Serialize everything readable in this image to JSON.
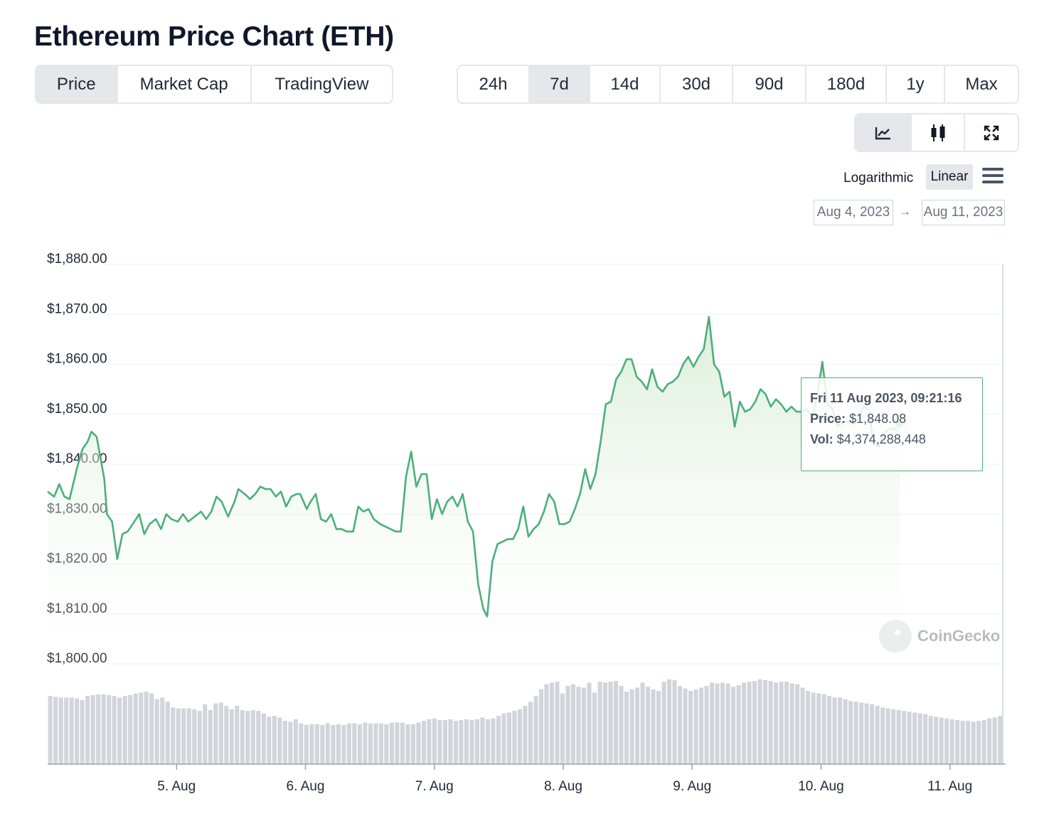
{
  "page": {
    "title": "Ethereum Price Chart (ETH)"
  },
  "view_tabs": [
    {
      "label": "Price",
      "active": true
    },
    {
      "label": "Market Cap",
      "active": false
    },
    {
      "label": "TradingView",
      "active": false
    }
  ],
  "range_tabs": [
    {
      "label": "24h",
      "active": false
    },
    {
      "label": "7d",
      "active": true
    },
    {
      "label": "14d",
      "active": false
    },
    {
      "label": "30d",
      "active": false
    },
    {
      "label": "90d",
      "active": false
    },
    {
      "label": "180d",
      "active": false
    },
    {
      "label": "1y",
      "active": false
    },
    {
      "label": "Max",
      "active": false
    }
  ],
  "chart_type_tabs": [
    {
      "icon": "line-chart-icon",
      "active": true
    },
    {
      "icon": "candlestick-icon",
      "active": false
    },
    {
      "icon": "fullscreen-icon",
      "active": false
    }
  ],
  "scale": {
    "logarithmic_label": "Logarithmic",
    "linear_label": "Linear",
    "selected": "Linear",
    "menu_icon": "hamburger-menu-icon"
  },
  "date_range": {
    "from": "Aug 4, 2023",
    "arrow": "→",
    "to": "Aug 11, 2023"
  },
  "tooltip": {
    "date": "Fri 11 Aug 2023, 09:21:16",
    "price_label": "Price:",
    "price_value": "$1,848.08",
    "vol_label": "Vol:",
    "vol_value": "$4,374,288,448"
  },
  "watermark": {
    "text": "CoinGecko",
    "icon": "coingecko-logo-icon"
  },
  "colors": {
    "line": "#4caf7a",
    "area_top": "#dcefdb",
    "volume": "#d1d5db",
    "grid": "#eef0f2"
  },
  "chart_data": {
    "type": "area",
    "ylim": [
      1800,
      1880
    ],
    "y_ticks": [
      "$1,880.00",
      "$1,870.00",
      "$1,860.00",
      "$1,850.00",
      "$1,840.00",
      "$1,830.00",
      "$1,820.00",
      "$1,810.00",
      "$1,800.00"
    ],
    "y_tick_values": [
      1880,
      1870,
      1860,
      1850,
      1840,
      1830,
      1820,
      1810,
      1800
    ],
    "x_ticks": [
      "5. Aug",
      "6. Aug",
      "7. Aug",
      "8. Aug",
      "9. Aug",
      "10. Aug",
      "11. Aug"
    ],
    "x_tick_days": [
      1.0,
      2.0,
      3.0,
      4.0,
      5.0,
      6.0,
      7.0
    ],
    "x_range_days": [
      0.0,
      7.41
    ],
    "series": [
      {
        "points": [
          [
            0.0,
            1834.5
          ],
          [
            0.05,
            1833.5
          ],
          [
            0.09,
            1836
          ],
          [
            0.13,
            1833.5
          ],
          [
            0.17,
            1833
          ],
          [
            0.23,
            1839.5
          ],
          [
            0.27,
            1843
          ],
          [
            0.31,
            1844.5
          ],
          [
            0.34,
            1846.5
          ],
          [
            0.38,
            1845.5
          ],
          [
            0.44,
            1837
          ],
          [
            0.46,
            1830
          ],
          [
            0.5,
            1828.5
          ],
          [
            0.54,
            1821
          ],
          [
            0.58,
            1826
          ],
          [
            0.62,
            1826.5
          ],
          [
            0.66,
            1828
          ],
          [
            0.71,
            1830
          ],
          [
            0.75,
            1826
          ],
          [
            0.79,
            1828
          ],
          [
            0.84,
            1829
          ],
          [
            0.88,
            1827
          ],
          [
            0.92,
            1830
          ],
          [
            0.96,
            1829
          ],
          [
            1.01,
            1828.5
          ],
          [
            1.05,
            1830
          ],
          [
            1.09,
            1828.5
          ],
          [
            1.14,
            1829.5
          ],
          [
            1.19,
            1830.5
          ],
          [
            1.23,
            1829
          ],
          [
            1.27,
            1830.5
          ],
          [
            1.31,
            1833.5
          ],
          [
            1.35,
            1832.5
          ],
          [
            1.4,
            1829.5
          ],
          [
            1.45,
            1832.5
          ],
          [
            1.48,
            1835
          ],
          [
            1.53,
            1834
          ],
          [
            1.57,
            1833
          ],
          [
            1.61,
            1834
          ],
          [
            1.65,
            1835.5
          ],
          [
            1.69,
            1835
          ],
          [
            1.73,
            1835
          ],
          [
            1.77,
            1833.5
          ],
          [
            1.81,
            1834.5
          ],
          [
            1.85,
            1831.5
          ],
          [
            1.89,
            1833.5
          ],
          [
            1.93,
            1834
          ],
          [
            1.96,
            1834
          ],
          [
            2.01,
            1831
          ],
          [
            2.04,
            1832.5
          ],
          [
            2.08,
            1834
          ],
          [
            2.12,
            1829
          ],
          [
            2.16,
            1828.5
          ],
          [
            2.2,
            1830
          ],
          [
            2.24,
            1827
          ],
          [
            2.28,
            1827
          ],
          [
            2.32,
            1826.5
          ],
          [
            2.37,
            1826.5
          ],
          [
            2.41,
            1831.5
          ],
          [
            2.45,
            1830.5
          ],
          [
            2.49,
            1831
          ],
          [
            2.53,
            1829
          ],
          [
            2.58,
            1828
          ],
          [
            2.62,
            1827.5
          ],
          [
            2.66,
            1827
          ],
          [
            2.7,
            1826.5
          ],
          [
            2.74,
            1826.5
          ],
          [
            2.78,
            1837.5
          ],
          [
            2.82,
            1842.5
          ],
          [
            2.86,
            1835.5
          ],
          [
            2.9,
            1838
          ],
          [
            2.94,
            1838
          ],
          [
            2.98,
            1829
          ],
          [
            3.02,
            1833
          ],
          [
            3.06,
            1830
          ],
          [
            3.1,
            1832.5
          ],
          [
            3.14,
            1833.5
          ],
          [
            3.18,
            1831.5
          ],
          [
            3.22,
            1834
          ],
          [
            3.26,
            1828.5
          ],
          [
            3.3,
            1826.5
          ],
          [
            3.34,
            1816
          ],
          [
            3.38,
            1811
          ],
          [
            3.41,
            1809.5
          ],
          [
            3.45,
            1820.5
          ],
          [
            3.49,
            1824
          ],
          [
            3.53,
            1824.5
          ],
          [
            3.57,
            1825
          ],
          [
            3.61,
            1825
          ],
          [
            3.65,
            1827
          ],
          [
            3.69,
            1831.5
          ],
          [
            3.73,
            1825.5
          ],
          [
            3.77,
            1827
          ],
          [
            3.81,
            1828
          ],
          [
            3.85,
            1830.5
          ],
          [
            3.89,
            1834
          ],
          [
            3.93,
            1832.5
          ],
          [
            3.97,
            1828
          ],
          [
            4.01,
            1828
          ],
          [
            4.05,
            1828.5
          ],
          [
            4.09,
            1831
          ],
          [
            4.13,
            1834
          ],
          [
            4.17,
            1839
          ],
          [
            4.21,
            1835
          ],
          [
            4.25,
            1838
          ],
          [
            4.29,
            1844.5
          ],
          [
            4.33,
            1852
          ],
          [
            4.37,
            1852.5
          ],
          [
            4.41,
            1857
          ],
          [
            4.45,
            1858.5
          ],
          [
            4.49,
            1861
          ],
          [
            4.53,
            1861
          ],
          [
            4.57,
            1857.5
          ],
          [
            4.61,
            1856.5
          ],
          [
            4.65,
            1855
          ],
          [
            4.69,
            1859
          ],
          [
            4.73,
            1855.5
          ],
          [
            4.77,
            1854.5
          ],
          [
            4.81,
            1856
          ],
          [
            4.85,
            1856.5
          ],
          [
            4.89,
            1857.5
          ],
          [
            4.93,
            1860
          ],
          [
            4.97,
            1861.5
          ],
          [
            5.01,
            1859.5
          ],
          [
            5.05,
            1861.5
          ],
          [
            5.09,
            1863
          ],
          [
            5.13,
            1869.5
          ],
          [
            5.17,
            1860
          ],
          [
            5.21,
            1858.5
          ],
          [
            5.25,
            1853.5
          ],
          [
            5.29,
            1854.5
          ],
          [
            5.33,
            1847.5
          ],
          [
            5.37,
            1852.5
          ],
          [
            5.41,
            1850.5
          ],
          [
            5.45,
            1851
          ],
          [
            5.49,
            1852.5
          ],
          [
            5.53,
            1855
          ],
          [
            5.57,
            1854
          ],
          [
            5.61,
            1851.5
          ],
          [
            5.65,
            1853
          ],
          [
            5.69,
            1852
          ],
          [
            5.73,
            1850.5
          ],
          [
            5.77,
            1851.5
          ],
          [
            5.81,
            1850.5
          ],
          [
            5.85,
            1850.5
          ],
          [
            5.89,
            1851
          ],
          [
            5.93,
            1849.5
          ],
          [
            5.97,
            1853.5
          ],
          [
            6.01,
            1860.5
          ],
          [
            6.05,
            1852
          ],
          [
            6.09,
            1851
          ],
          [
            6.13,
            1847.5
          ],
          [
            6.17,
            1848.5
          ],
          [
            6.21,
            1848.5
          ],
          [
            6.25,
            1848
          ],
          [
            6.29,
            1849
          ],
          [
            6.33,
            1851.5
          ],
          [
            6.37,
            1851
          ],
          [
            6.41,
            1844
          ],
          [
            6.45,
            1843.5
          ],
          [
            6.48,
            1846
          ],
          [
            6.52,
            1847
          ],
          [
            6.57,
            1847
          ],
          [
            6.61,
            1848.08
          ]
        ]
      }
    ],
    "volume": {
      "ylim": [
        0,
        100
      ],
      "values": [
        82,
        81,
        80,
        80,
        80,
        79,
        77,
        82,
        83,
        84,
        84,
        83,
        82,
        80,
        82,
        83,
        85,
        86,
        87,
        85,
        78,
        80,
        75,
        68,
        67,
        67,
        67,
        66,
        64,
        72,
        65,
        73,
        74,
        70,
        66,
        70,
        65,
        64,
        65,
        64,
        61,
        57,
        58,
        56,
        52,
        51,
        54,
        49,
        47,
        48,
        48,
        47,
        49,
        47,
        48,
        47,
        49,
        49,
        48,
        50,
        49,
        49,
        49,
        48,
        50,
        50,
        50,
        48,
        48,
        50,
        52,
        54,
        55,
        53,
        53,
        54,
        52,
        53,
        54,
        53,
        54,
        56,
        54,
        55,
        58,
        61,
        62,
        64,
        66,
        70,
        75,
        82,
        90,
        96,
        98,
        99,
        85,
        94,
        96,
        93,
        92,
        98,
        86,
        99,
        98,
        99,
        100,
        94,
        87,
        90,
        92,
        98,
        93,
        90,
        88,
        99,
        102,
        101,
        94,
        91,
        88,
        90,
        92,
        94,
        98,
        97,
        98,
        97,
        93,
        95,
        98,
        99,
        100,
        102,
        101,
        100,
        98,
        99,
        99,
        97,
        96,
        92,
        88,
        86,
        85,
        84,
        82,
        80,
        80,
        78,
        76,
        75,
        74,
        73,
        72,
        70,
        68,
        67,
        66,
        65,
        64,
        63,
        62,
        61,
        60,
        58,
        57,
        56,
        55,
        54,
        53,
        52,
        52,
        51,
        52,
        53,
        55,
        56,
        58
      ]
    },
    "last_point_marker": true,
    "grid": true
  }
}
